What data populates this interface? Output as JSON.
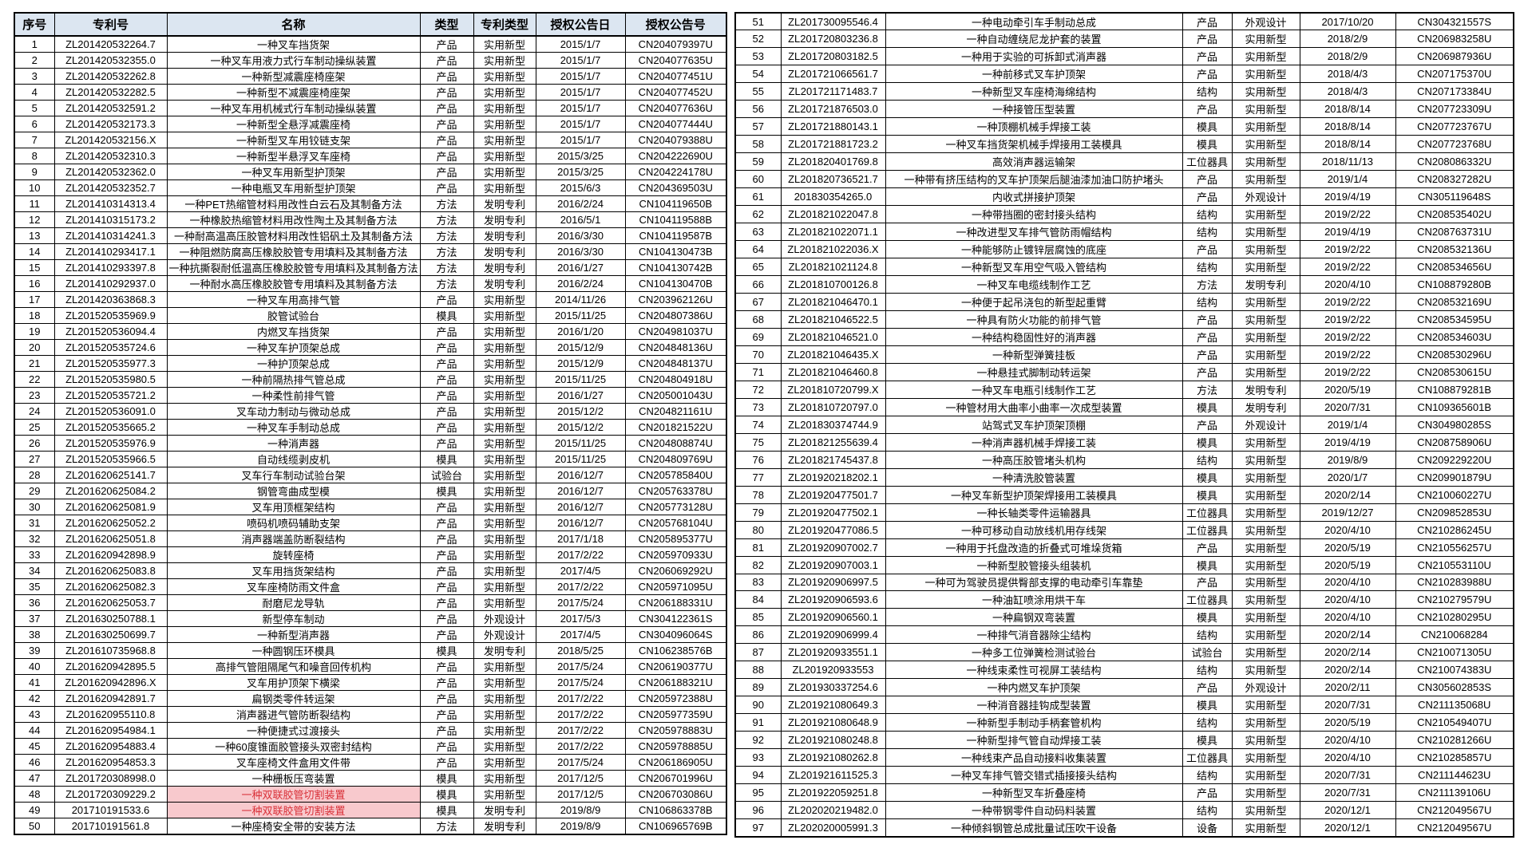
{
  "colors": {
    "header_bg": "#dce6f1",
    "highlight_bg": "#f8c9cd",
    "highlight_text": "#d93038",
    "border": "#000000",
    "cell_bg": "#ffffff"
  },
  "headers": [
    "序号",
    "专利号",
    "名称",
    "类型",
    "专利类型",
    "授权公告日",
    "授权公告号"
  ],
  "left_table": {
    "highlighted_name_rows": [
      48,
      49
    ],
    "rows": [
      [
        "1",
        "ZL201420532264.7",
        "一种叉车挡货架",
        "产品",
        "实用新型",
        "2015/1/7",
        "CN204079397U"
      ],
      [
        "2",
        "ZL201420532355.0",
        "一种叉车用液力式行车制动操纵装置",
        "产品",
        "实用新型",
        "2015/1/7",
        "CN204077635U"
      ],
      [
        "3",
        "ZL201420532262.8",
        "一种新型减震座椅座架",
        "产品",
        "实用新型",
        "2015/1/7",
        "CN204077451U"
      ],
      [
        "4",
        "ZL201420532282.5",
        "一种新型不减震座椅座架",
        "产品",
        "实用新型",
        "2015/1/7",
        "CN204077452U"
      ],
      [
        "5",
        "ZL201420532591.2",
        "一种叉车用机械式行车制动操纵装置",
        "产品",
        "实用新型",
        "2015/1/7",
        "CN204077636U"
      ],
      [
        "6",
        "ZL201420532173.3",
        "一种新型全悬浮减震座椅",
        "产品",
        "实用新型",
        "2015/1/7",
        "CN204077444U"
      ],
      [
        "7",
        "ZL201420532156.X",
        "一种新型叉车用铰链支架",
        "产品",
        "实用新型",
        "2015/1/7",
        "CN204079388U"
      ],
      [
        "8",
        "ZL201420532310.3",
        "一种新型半悬浮叉车座椅",
        "产品",
        "实用新型",
        "2015/3/25",
        "CN204222690U"
      ],
      [
        "9",
        "ZL201420532362.0",
        "一种叉车用新型护顶架",
        "产品",
        "实用新型",
        "2015/3/25",
        "CN204224178U"
      ],
      [
        "10",
        "ZL201420532352.7",
        "一种电瓶叉车用新型护顶架",
        "产品",
        "实用新型",
        "2015/6/3",
        "CN204369503U"
      ],
      [
        "11",
        "ZL201410314313.4",
        "一种PET热缩管材料用改性白云石及其制备方法",
        "方法",
        "发明专利",
        "2016/2/24",
        "CN104119650B"
      ],
      [
        "12",
        "ZL201410315173.2",
        "一种橡胶热缩管材料用改性陶土及其制备方法",
        "方法",
        "发明专利",
        "2016/5/1",
        "CN104119588B"
      ],
      [
        "13",
        "ZL201410314241.3",
        "一种耐高温高压胶管材料用改性铝矾土及其制备方法",
        "方法",
        "发明专利",
        "2016/3/30",
        "CN104119587B"
      ],
      [
        "14",
        "ZL201410293417.1",
        "一种阻燃防腐高压橡胶胶管专用填料及其制备方法",
        "方法",
        "发明专利",
        "2016/3/30",
        "CN104130473B"
      ],
      [
        "15",
        "ZL201410293397.8",
        "一种抗撕裂耐低温高压橡胶胶管专用填料及其制备方法",
        "方法",
        "发明专利",
        "2016/1/27",
        "CN104130742B"
      ],
      [
        "16",
        "ZL201410292937.0",
        "一种耐水高压橡胶胶管专用填料及其制备方法",
        "方法",
        "发明专利",
        "2016/2/24",
        "CN104130470B"
      ],
      [
        "17",
        "ZL201420363868.3",
        "一种叉车用高排气管",
        "产品",
        "实用新型",
        "2014/11/26",
        "CN203962126U"
      ],
      [
        "18",
        "ZL201520535969.9",
        "胶管试验台",
        "模具",
        "实用新型",
        "2015/11/25",
        "CN204807386U"
      ],
      [
        "19",
        "ZL201520536094.4",
        "内燃叉车挡货架",
        "产品",
        "实用新型",
        "2016/1/20",
        "CN204981037U"
      ],
      [
        "20",
        "ZL201520535724.6",
        "一种叉车护顶架总成",
        "产品",
        "实用新型",
        "2015/12/9",
        "CN204848136U"
      ],
      [
        "21",
        "ZL201520535977.3",
        "一种护顶架总成",
        "产品",
        "实用新型",
        "2015/12/9",
        "CN204848137U"
      ],
      [
        "22",
        "ZL201520535980.5",
        "一种前隔热排气管总成",
        "产品",
        "实用新型",
        "2015/11/25",
        "CN204804918U"
      ],
      [
        "23",
        "ZL201520535721.2",
        "一种柔性前排气管",
        "产品",
        "实用新型",
        "2016/1/27",
        "CN205001043U"
      ],
      [
        "24",
        "ZL201520536091.0",
        "叉车动力制动与微动总成",
        "产品",
        "实用新型",
        "2015/12/2",
        "CN204821161U"
      ],
      [
        "25",
        "ZL201520535665.2",
        "一种叉车手制动总成",
        "产品",
        "实用新型",
        "2015/12/2",
        "CN201821522U"
      ],
      [
        "26",
        "ZL201520535976.9",
        "一种消声器",
        "产品",
        "实用新型",
        "2015/11/25",
        "CN204808874U"
      ],
      [
        "27",
        "ZL201520535966.5",
        "自动线缆剥皮机",
        "模具",
        "实用新型",
        "2015/11/25",
        "CN204809769U"
      ],
      [
        "28",
        "ZL201620625141.7",
        "叉车行车制动试验台架",
        "试验台",
        "实用新型",
        "2016/12/7",
        "CN205785840U"
      ],
      [
        "29",
        "ZL201620625084.2",
        "钢管弯曲成型模",
        "模具",
        "实用新型",
        "2016/12/7",
        "CN205763378U"
      ],
      [
        "30",
        "ZL201620625081.9",
        "叉车用顶框架结构",
        "产品",
        "实用新型",
        "2016/12/7",
        "CN205773128U"
      ],
      [
        "31",
        "ZL201620625052.2",
        "喷码机喷码辅助支架",
        "产品",
        "实用新型",
        "2016/12/7",
        "CN205768104U"
      ],
      [
        "32",
        "ZL201620625051.8",
        "消声器端盖防断裂结构",
        "产品",
        "实用新型",
        "2017/1/18",
        "CN205895377U"
      ],
      [
        "33",
        "ZL201620942898.9",
        "旋转座椅",
        "产品",
        "实用新型",
        "2017/2/22",
        "CN205970933U"
      ],
      [
        "34",
        "ZL201620625083.8",
        "叉车用挡货架结构",
        "产品",
        "实用新型",
        "2017/4/5",
        "CN206069292U"
      ],
      [
        "35",
        "ZL201620625082.3",
        "叉车座椅防雨文件盒",
        "产品",
        "实用新型",
        "2017/2/22",
        "CN205971095U"
      ],
      [
        "36",
        "ZL201620625053.7",
        "耐磨尼龙导轨",
        "产品",
        "实用新型",
        "2017/5/24",
        "CN206188331U"
      ],
      [
        "37",
        "ZL201630250788.1",
        "新型停车制动",
        "产品",
        "外观设计",
        "2017/5/3",
        "CN304122361S"
      ],
      [
        "38",
        "ZL201630250699.7",
        "一种新型消声器",
        "产品",
        "外观设计",
        "2017/4/5",
        "CN304096064S"
      ],
      [
        "39",
        "ZL201610735968.8",
        "一种圆钢压环模具",
        "模具",
        "发明专利",
        "2018/5/25",
        "CN106238576B"
      ],
      [
        "40",
        "ZL201620942895.5",
        "高排气管阻隔尾气和噪音回传机构",
        "产品",
        "实用新型",
        "2017/5/24",
        "CN206190377U"
      ],
      [
        "41",
        "ZL201620942896.X",
        "叉车用护顶架下横梁",
        "产品",
        "实用新型",
        "2017/5/24",
        "CN206188321U"
      ],
      [
        "42",
        "ZL201620942891.7",
        "扁钢类零件转运架",
        "产品",
        "实用新型",
        "2017/2/22",
        "CN205972388U"
      ],
      [
        "43",
        "ZL201620955110.8",
        "消声器进气管防断裂结构",
        "产品",
        "实用新型",
        "2017/2/22",
        "CN205977359U"
      ],
      [
        "44",
        "ZL201620954984.1",
        "一种便捷式过渡接头",
        "产品",
        "实用新型",
        "2017/2/22",
        "CN205978883U"
      ],
      [
        "45",
        "ZL201620954883.4",
        "一种60度锥面胶管接头双密封结构",
        "产品",
        "实用新型",
        "2017/2/22",
        "CN205978885U"
      ],
      [
        "46",
        "ZL201620954853.3",
        "叉车座椅文件盒用文件带",
        "产品",
        "实用新型",
        "2017/5/24",
        "CN206186905U"
      ],
      [
        "47",
        "ZL201720308998.0",
        "一种栅板压弯装置",
        "模具",
        "实用新型",
        "2017/12/5",
        "CN206701996U"
      ],
      [
        "48",
        "ZL201720309229.2",
        "一种双联胶管切割装置",
        "模具",
        "实用新型",
        "2017/12/5",
        "CN206703086U"
      ],
      [
        "49",
        "201710191533.6",
        "一种双联胶管切割装置",
        "模具",
        "发明专利",
        "2019/8/9",
        "CN106863378B"
      ],
      [
        "50",
        "201710191561.8",
        "一种座椅安全带的安装方法",
        "方法",
        "发明专利",
        "2019/8/9",
        "CN106965769B"
      ]
    ]
  },
  "right_table": {
    "highlighted_name_rows": [],
    "rows": [
      [
        "51",
        "ZL201730095546.4",
        "一种电动牵引车手制动总成",
        "产品",
        "外观设计",
        "2017/10/20",
        "CN304321557S"
      ],
      [
        "52",
        "ZL201720803236.8",
        "一种自动缠绕尼龙护套的装置",
        "产品",
        "实用新型",
        "2018/2/9",
        "CN206983258U"
      ],
      [
        "53",
        "ZL201720803182.5",
        "一种用于实验的可拆卸式消声器",
        "产品",
        "实用新型",
        "2018/2/9",
        "CN206987936U"
      ],
      [
        "54",
        "ZL201721066561.7",
        "一种前移式叉车护顶架",
        "产品",
        "实用新型",
        "2018/4/3",
        "CN207175370U"
      ],
      [
        "55",
        "ZL201721171483.7",
        "一种新型叉车座椅海绵结构",
        "结构",
        "实用新型",
        "2018/4/3",
        "CN207173384U"
      ],
      [
        "56",
        "ZL201721876503.0",
        "一种接管压型装置",
        "产品",
        "实用新型",
        "2018/8/14",
        "CN207723309U"
      ],
      [
        "57",
        "ZL201721880143.1",
        "一种顶棚机械手焊接工装",
        "模具",
        "实用新型",
        "2018/8/14",
        "CN207723767U"
      ],
      [
        "58",
        "ZL201721881723.2",
        "一种叉车挡货架机械手焊接用工装模具",
        "模具",
        "实用新型",
        "2018/8/14",
        "CN207723768U"
      ],
      [
        "59",
        "ZL201820401769.8",
        "高效消声器运输架",
        "工位器具",
        "实用新型",
        "2018/11/13",
        "CN208086332U"
      ],
      [
        "60",
        "ZL201820736521.7",
        "一种带有挤压结构的叉车护顶架后腿油漆加油口防护堵头",
        "产品",
        "实用新型",
        "2019/1/4",
        "CN208327282U"
      ],
      [
        "61",
        "201830354265.0",
        "内收式拼接护顶架",
        "产品",
        "外观设计",
        "2019/4/19",
        "CN305119648S"
      ],
      [
        "62",
        "ZL201821022047.8",
        "一种带挡圈的密封接头结构",
        "结构",
        "实用新型",
        "2019/2/22",
        "CN208535402U"
      ],
      [
        "63",
        "ZL201821022071.1",
        "一种改进型叉车排气管防雨帽结构",
        "结构",
        "实用新型",
        "2019/4/19",
        "CN208763731U"
      ],
      [
        "64",
        "ZL201821022036.X",
        "一种能够防止镀锌层腐蚀的底座",
        "产品",
        "实用新型",
        "2019/2/22",
        "CN208532136U"
      ],
      [
        "65",
        "ZL201821021124.8",
        "一种新型叉车用空气吸入管结构",
        "结构",
        "实用新型",
        "2019/2/22",
        "CN208534656U"
      ],
      [
        "66",
        "ZL201810700126.8",
        "一种叉车电缆线制作工艺",
        "方法",
        "发明专利",
        "2020/4/10",
        "CN108879280B"
      ],
      [
        "67",
        "ZL201821046470.1",
        "一种便于起吊浇包的新型起重臂",
        "结构",
        "实用新型",
        "2019/2/22",
        "CN208532169U"
      ],
      [
        "68",
        "ZL201821046522.5",
        "一种具有防火功能的前排气管",
        "产品",
        "实用新型",
        "2019/2/22",
        "CN208534595U"
      ],
      [
        "69",
        "ZL201821046521.0",
        "一种结构稳固性好的消声器",
        "产品",
        "实用新型",
        "2019/2/22",
        "CN208534603U"
      ],
      [
        "70",
        "ZL201821046435.X",
        "一种新型弹簧挂板",
        "产品",
        "实用新型",
        "2019/2/22",
        "CN208530296U"
      ],
      [
        "71",
        "ZL201821046460.8",
        "一种悬挂式脚制动转运架",
        "产品",
        "实用新型",
        "2019/2/22",
        "CN208530615U"
      ],
      [
        "72",
        "ZL201810720799.X",
        "一种叉车电瓶引线制作工艺",
        "方法",
        "发明专利",
        "2020/5/19",
        "CN108879281B"
      ],
      [
        "73",
        "ZL201810720797.0",
        "一种管材用大曲率小曲率一次成型装置",
        "模具",
        "发明专利",
        "2020/7/31",
        "CN109365601B"
      ],
      [
        "74",
        "ZL201830374744.9",
        "站驾式叉车护顶架顶棚",
        "产品",
        "外观设计",
        "2019/1/4",
        "CN304980285S"
      ],
      [
        "75",
        "ZL201821255639.4",
        "一种消声器机械手焊接工装",
        "模具",
        "实用新型",
        "2019/4/19",
        "CN208758906U"
      ],
      [
        "76",
        "ZL201821745437.8",
        "一种高压胶管堵头机构",
        "结构",
        "实用新型",
        "2019/8/9",
        "CN209229220U"
      ],
      [
        "77",
        "ZL201920218202.1",
        "一种清洗胶管装置",
        "模具",
        "实用新型",
        "2020/1/7",
        "CN209901879U"
      ],
      [
        "78",
        "ZL201920477501.7",
        "一种叉车新型护顶架焊接用工装模具",
        "模具",
        "实用新型",
        "2020/2/14",
        "CN210060227U"
      ],
      [
        "79",
        "ZL201920477502.1",
        "一种长轴类零件运输器具",
        "工位器具",
        "实用新型",
        "2019/12/27",
        "CN209852853U"
      ],
      [
        "80",
        "ZL201920477086.5",
        "一种可移动自动放线机用存线架",
        "工位器具",
        "实用新型",
        "2020/4/10",
        "CN210286245U"
      ],
      [
        "81",
        "ZL201920907002.7",
        "一种用于托盘改造的折叠式可堆垛货箱",
        "产品",
        "实用新型",
        "2020/5/19",
        "CN210556257U"
      ],
      [
        "82",
        "ZL201920907003.1",
        "一种新型胶管接头组装机",
        "模具",
        "实用新型",
        "2020/5/19",
        "CN210553110U"
      ],
      [
        "83",
        "ZL201920906997.5",
        "一种可为驾驶员提供臀部支撑的电动牵引车靠垫",
        "产品",
        "实用新型",
        "2020/4/10",
        "CN210283988U"
      ],
      [
        "84",
        "ZL201920906593.6",
        "一种油缸喷涂用烘干车",
        "工位器具",
        "实用新型",
        "2020/4/10",
        "CN210279579U"
      ],
      [
        "85",
        "ZL201920906560.1",
        "一种扁钢双弯装置",
        "模具",
        "实用新型",
        "2020/4/10",
        "CN210280295U"
      ],
      [
        "86",
        "ZL201920906999.4",
        "一种排气消音器除尘结构",
        "结构",
        "实用新型",
        "2020/2/14",
        "CN210068284"
      ],
      [
        "87",
        "ZL201920933551.1",
        "一种多工位弹簧检测试验台",
        "试验台",
        "实用新型",
        "2020/2/14",
        "CN210071305U"
      ],
      [
        "88",
        "ZL201920933553",
        "一种线束柔性可视屏工装结构",
        "结构",
        "实用新型",
        "2020/2/14",
        "CN210074383U"
      ],
      [
        "89",
        "ZL201930337254.6",
        "一种内燃叉车护顶架",
        "产品",
        "外观设计",
        "2020/2/11",
        "CN305602853S"
      ],
      [
        "90",
        "ZL201921080649.3",
        "一种消音器挂钩成型装置",
        "模具",
        "实用新型",
        "2020/7/31",
        "CN211135068U"
      ],
      [
        "91",
        "ZL201921080648.9",
        "一种新型手制动手柄套管机构",
        "结构",
        "实用新型",
        "2020/5/19",
        "CN210549407U"
      ],
      [
        "92",
        "ZL201921080248.8",
        "一种新型排气管自动焊接工装",
        "模具",
        "实用新型",
        "2020/4/10",
        "CN210281266U"
      ],
      [
        "93",
        "ZL201921080262.8",
        "一种线束产品自动接料收集装置",
        "工位器具",
        "实用新型",
        "2020/4/10",
        "CN210285857U"
      ],
      [
        "94",
        "ZL201921611525.3",
        "一种叉车排气管交错式插接接头结构",
        "结构",
        "实用新型",
        "2020/7/31",
        "CN211144623U"
      ],
      [
        "95",
        "ZL201922059251.8",
        "一种新型叉车折叠座椅",
        "产品",
        "实用新型",
        "2020/7/31",
        "CN211139106U"
      ],
      [
        "96",
        "ZL202020219482.0",
        "一种带钢零件自动码料装置",
        "结构",
        "实用新型",
        "2020/12/1",
        "CN212049567U"
      ],
      [
        "97",
        "ZL202020005991.3",
        "一种倾斜钢管总成批量试压吹干设备",
        "设备",
        "实用新型",
        "2020/12/1",
        "CN212049567U"
      ]
    ]
  }
}
